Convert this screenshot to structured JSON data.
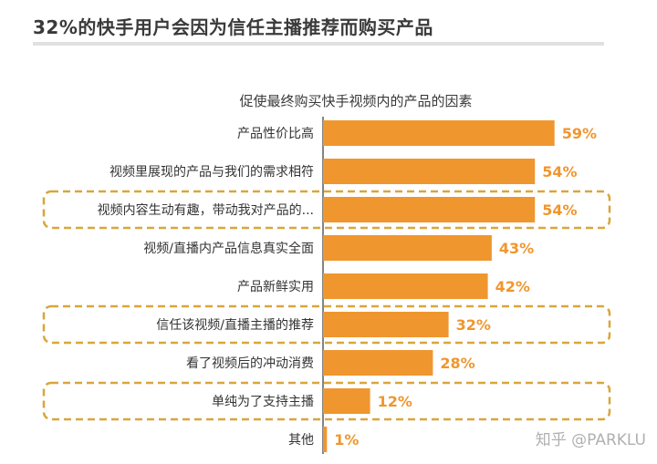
{
  "title": "32%的快手用户会因为信任主播推荐而购买产品",
  "watermark": "知乎 @PARKLU",
  "colors": {
    "bar": "#f0962e",
    "label": "#f0962e",
    "highlight_box": "#d9a63a",
    "axis": "#333333"
  },
  "chart_data": {
    "type": "bar",
    "orientation": "horizontal",
    "title": "促使最终购买快手视频内的产品的因素",
    "categories": [
      "产品性价比高",
      "视频里展现的产品与我们的需求相符",
      "视频内容生动有趣，带动我对产品的...",
      "视频/直播内产品信息真实全面",
      "产品新鲜实用",
      "信任该视频/直播主播的推荐",
      "看了视频后的冲动消费",
      "单纯为了支持主播",
      "其他"
    ],
    "values": [
      59,
      54,
      54,
      43,
      42,
      32,
      28,
      12,
      1
    ],
    "value_labels": [
      "59%",
      "54%",
      "54%",
      "43%",
      "42%",
      "32%",
      "28%",
      "12%",
      "1%"
    ],
    "unit": "%",
    "xlim": [
      0,
      100
    ],
    "highlighted_categories": [
      "视频内容生动有趣，带动我对产品的...",
      "信任该视频/直播主播的推荐",
      "单纯为了支持主播"
    ],
    "grid": false
  }
}
